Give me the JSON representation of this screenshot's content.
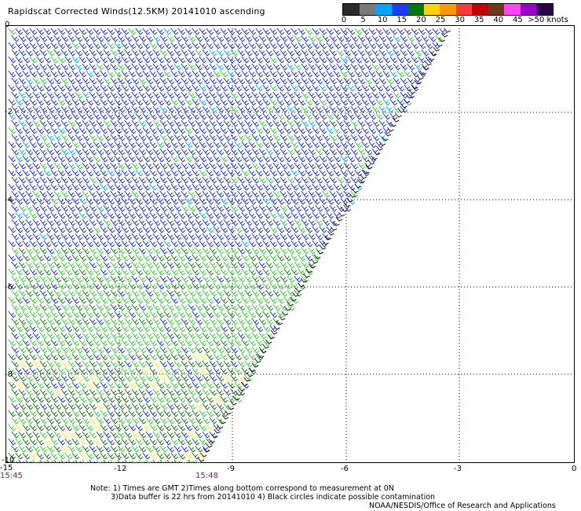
{
  "title": "Rapidscat Corrected Winds(12.5KM) 20141010 ascending",
  "colorbar": {
    "colors": [
      "#2b2b2b",
      "#7a7a7a",
      "#00a6ff",
      "#1a3dff",
      "#007a00",
      "#ffd400",
      "#ff9a00",
      "#ff3a3a",
      "#c00000",
      "#6b3a1f",
      "#ff44ff",
      "#9a00c8",
      "#2a004a"
    ],
    "labels": [
      "0",
      "5",
      "10",
      "15",
      "20",
      "25",
      "30",
      "35",
      "40",
      "45",
      ">50 knots"
    ]
  },
  "axes": {
    "x_ticks": [
      "-15",
      "-12",
      "-9",
      "-6",
      "-3",
      "0"
    ],
    "y_ticks": [
      "0",
      "-2",
      "-4",
      "-6",
      "-8",
      "-10"
    ]
  },
  "times": {
    "start": "15:45",
    "end": "15:48"
  },
  "notes": {
    "line1": "Note: 1) Times are GMT 2)Times along bottom correspond to measurement at 0N",
    "line2": "3)Data buffer is 22 hrs from 20141010 4) Black circles indicate possible contamination",
    "line3": "NOAA/NESDIS/Office of Research and Applications"
  }
}
